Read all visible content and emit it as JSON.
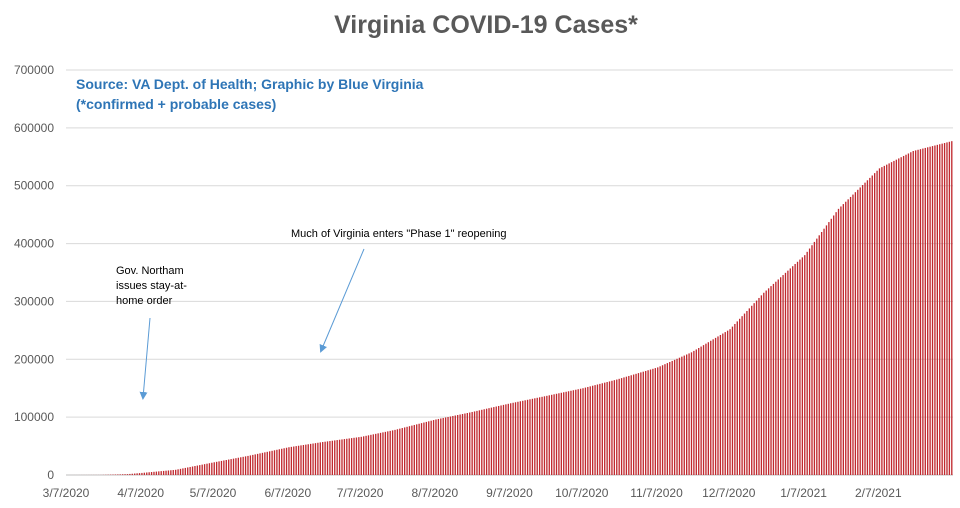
{
  "chart_data": {
    "type": "bar",
    "title": "Virginia COVID-19 Cases*",
    "source_note": "Source: VA Dept. of Health; Graphic by Blue Virginia",
    "subtitle_note": "(*confirmed + probable cases)",
    "xlabel": "",
    "ylabel": "",
    "ylim": [
      0,
      700000
    ],
    "grid": true,
    "legend": "none",
    "bar_color": "#C0282E",
    "gridline_color": "#D9D9D9",
    "title_color": "#595959",
    "note_color": "#2E75B6",
    "arrow_color": "#5B9BD5",
    "y_ticks": [
      "0",
      "100000",
      "200000",
      "300000",
      "400000",
      "500000",
      "600000",
      "700000"
    ],
    "x_ticks": [
      "3/7/2020",
      "4/7/2020",
      "5/7/2020",
      "6/7/2020",
      "7/7/2020",
      "8/7/2020",
      "9/7/2020",
      "10/7/2020",
      "11/7/2020",
      "12/7/2020",
      "1/7/2021",
      "2/7/2021"
    ],
    "dates_note": "one bar per day from 3/7/2020 through 3/9/2021 (x values are calendar dates)",
    "start_date": "2020-03-07",
    "monthly_values": [
      {
        "date": "3/7/2020",
        "value": 0
      },
      {
        "date": "3/21/2020",
        "value": 150
      },
      {
        "date": "4/1/2020",
        "value": 1500
      },
      {
        "date": "4/7/2020",
        "value": 3600
      },
      {
        "date": "4/21/2020",
        "value": 9000
      },
      {
        "date": "5/7/2020",
        "value": 22000
      },
      {
        "date": "5/21/2020",
        "value": 33000
      },
      {
        "date": "6/7/2020",
        "value": 48000
      },
      {
        "date": "6/21/2020",
        "value": 57000
      },
      {
        "date": "7/7/2020",
        "value": 66000
      },
      {
        "date": "7/21/2020",
        "value": 78000
      },
      {
        "date": "8/7/2020",
        "value": 96000
      },
      {
        "date": "8/21/2020",
        "value": 108000
      },
      {
        "date": "9/7/2020",
        "value": 124000
      },
      {
        "date": "9/21/2020",
        "value": 136000
      },
      {
        "date": "10/7/2020",
        "value": 150000
      },
      {
        "date": "10/21/2020",
        "value": 165000
      },
      {
        "date": "11/7/2020",
        "value": 186000
      },
      {
        "date": "11/21/2020",
        "value": 212000
      },
      {
        "date": "12/7/2020",
        "value": 252000
      },
      {
        "date": "12/21/2020",
        "value": 315000
      },
      {
        "date": "1/7/2021",
        "value": 380000
      },
      {
        "date": "1/21/2021",
        "value": 460000
      },
      {
        "date": "2/7/2021",
        "value": 530000
      },
      {
        "date": "2/21/2021",
        "value": 560000
      },
      {
        "date": "3/9/2021",
        "value": 577000
      }
    ],
    "annotations": [
      {
        "text_lines": [
          "Gov. Northam",
          "issues stay-at-",
          "home order"
        ],
        "points_to_date": "3/30/2020"
      },
      {
        "text_lines": [
          "Much of Virginia enters \"Phase 1\" reopening"
        ],
        "points_to_date": "5/15/2020"
      }
    ]
  }
}
